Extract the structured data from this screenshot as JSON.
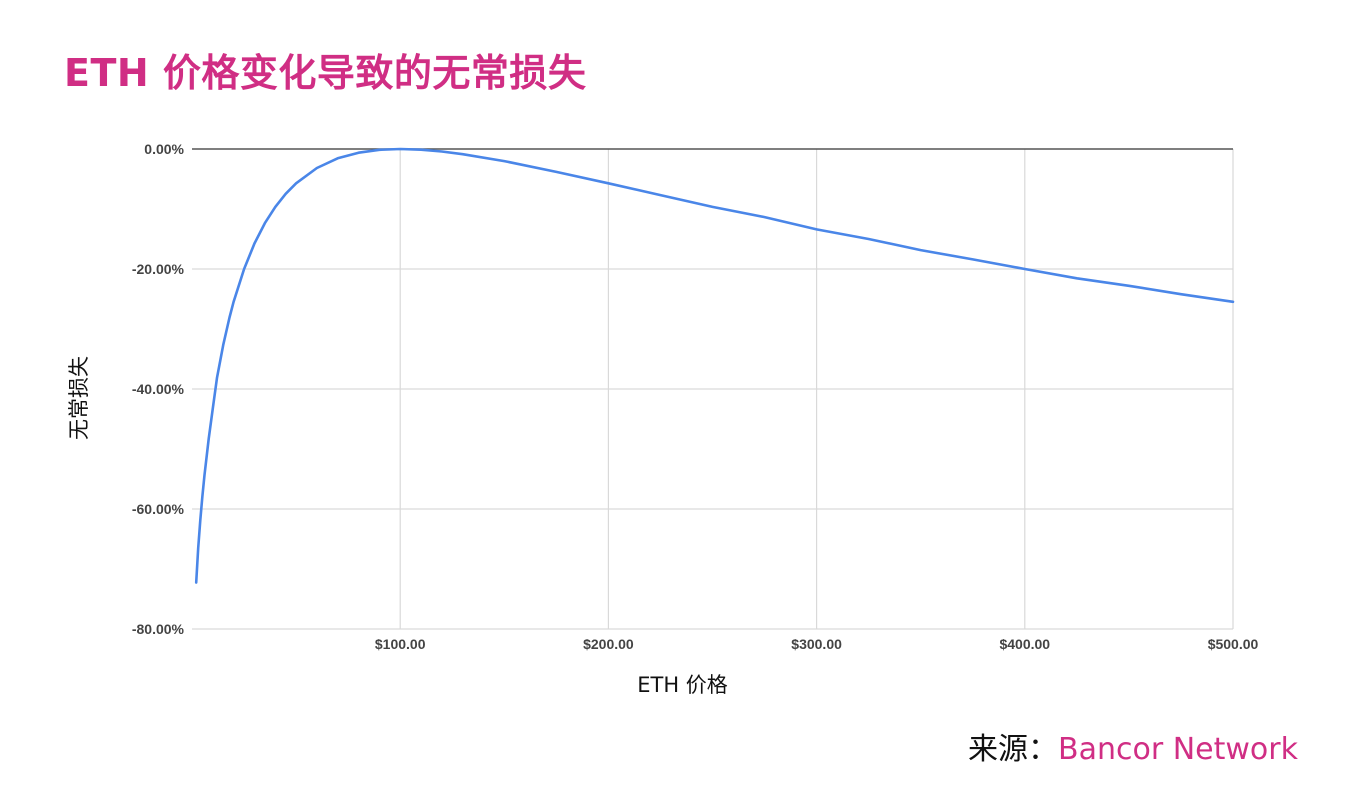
{
  "title": "ETH 价格变化导致的无常损失",
  "source": {
    "label": "来源：",
    "name": "Bancor Network"
  },
  "colors": {
    "accent": "#d02e84",
    "line": "#4a86e8",
    "grid": "#d9d9d9",
    "axis": "#555555"
  },
  "chart_data": {
    "type": "line",
    "xlabel": "ETH 价格",
    "ylabel": "无常损失",
    "xlim": [
      0,
      500
    ],
    "ylim": [
      -80,
      0
    ],
    "x_ticks": [
      100,
      200,
      300,
      400,
      500
    ],
    "x_tick_labels": [
      "$100.00",
      "$200.00",
      "$300.00",
      "$400.00",
      "$500.00"
    ],
    "y_ticks": [
      0,
      -20,
      -40,
      -60,
      -80
    ],
    "y_tick_labels": [
      "0.00%",
      "-20.00%",
      "-40.00%",
      "-60.00%",
      "-80.00%"
    ],
    "grid": true,
    "legend": "none",
    "series": [
      {
        "x": [
          2,
          3,
          4,
          5,
          6,
          8,
          10,
          12,
          15,
          18,
          20,
          25,
          30,
          35,
          40,
          45,
          50,
          60,
          70,
          80,
          90,
          100,
          110,
          120,
          130,
          150,
          175,
          200,
          225,
          250,
          275,
          300,
          325,
          350,
          375,
          400,
          425,
          450,
          475,
          500
        ],
        "values": [
          -72.27,
          -66.52,
          -61.85,
          -57.85,
          -54.33,
          -48.3,
          -43.23,
          -38.14,
          -32.68,
          -28.09,
          -25.46,
          -20.0,
          -15.73,
          -12.35,
          -9.65,
          -7.47,
          -5.72,
          -3.17,
          -1.55,
          -0.62,
          -0.14,
          0.0,
          -0.11,
          -0.41,
          -0.86,
          -2.02,
          -3.82,
          -5.72,
          -7.69,
          -9.65,
          -11.35,
          -13.4,
          -15.0,
          -16.85,
          -18.4,
          -20.0,
          -21.55,
          -22.8,
          -24.2,
          -25.46
        ]
      }
    ]
  }
}
